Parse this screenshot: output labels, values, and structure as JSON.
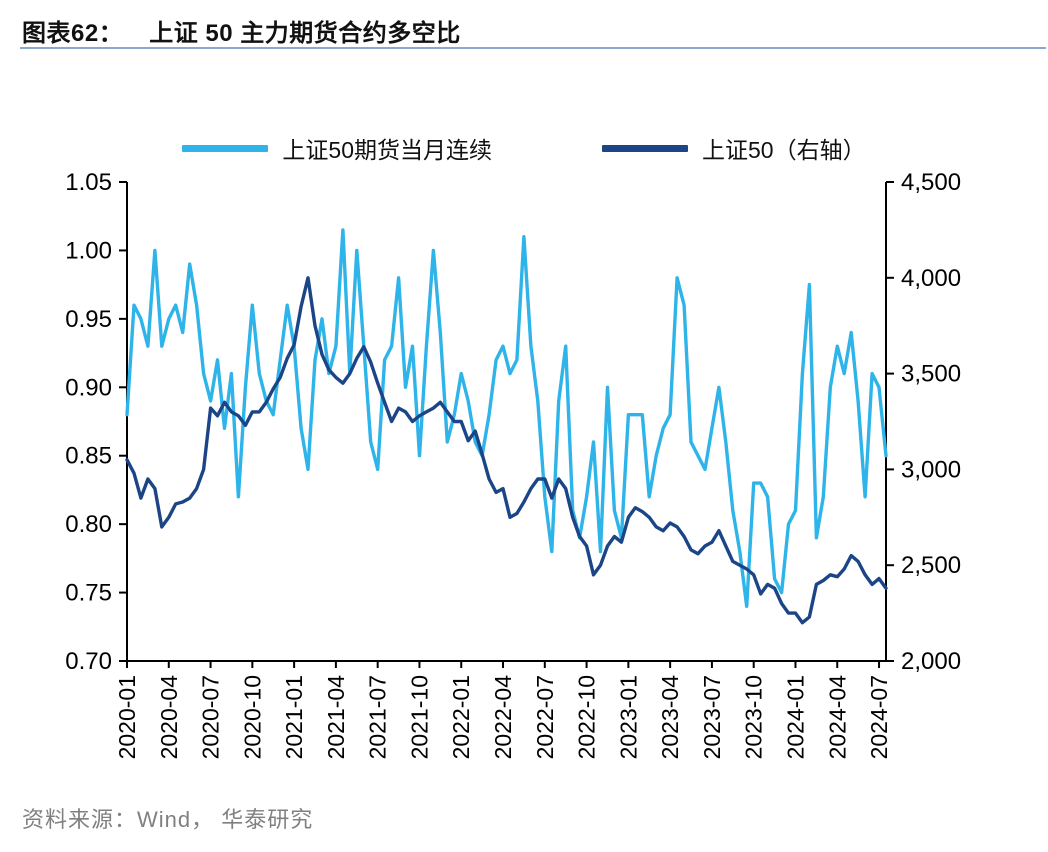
{
  "header": {
    "figure_label": "图表62：",
    "title": "上证 50 主力期货合约多空比"
  },
  "footer": {
    "source": "资料来源：Wind， 华泰研究"
  },
  "chart_data": {
    "type": "line",
    "title": "上证 50 主力期货合约多空比",
    "legend_position": "top",
    "grid": false,
    "x_tick_labels": [
      "2020-01",
      "2020-04",
      "2020-07",
      "2020-10",
      "2021-01",
      "2021-04",
      "2021-07",
      "2021-10",
      "2022-01",
      "2022-04",
      "2022-07",
      "2022-10",
      "2023-01",
      "2023-04",
      "2023-07",
      "2023-10",
      "2024-01",
      "2024-04",
      "2024-07"
    ],
    "x_tick_every_months": 3,
    "points_per_month": 2,
    "left_axis": {
      "min": 0.7,
      "max": 1.05,
      "ticks": [
        0.7,
        0.75,
        0.8,
        0.85,
        0.9,
        0.95,
        1.0,
        1.05
      ],
      "tick_labels": [
        "0.70",
        "0.75",
        "0.80",
        "0.85",
        "0.90",
        "0.95",
        "1.00",
        "1.05"
      ]
    },
    "right_axis": {
      "min": 2000,
      "max": 4500,
      "ticks": [
        2000,
        2500,
        3000,
        3500,
        4000,
        4500
      ],
      "tick_labels": [
        "2,000",
        "2,500",
        "3,000",
        "3,500",
        "4,000",
        "4,500"
      ]
    },
    "series": [
      {
        "name": "上证50期货当月连续",
        "axis": "left",
        "color": "#2FB4EA",
        "values": [
          0.88,
          0.96,
          0.95,
          0.93,
          1.0,
          0.93,
          0.95,
          0.96,
          0.94,
          0.99,
          0.96,
          0.91,
          0.89,
          0.92,
          0.87,
          0.91,
          0.82,
          0.9,
          0.96,
          0.91,
          0.89,
          0.88,
          0.92,
          0.96,
          0.93,
          0.87,
          0.84,
          0.92,
          0.95,
          0.91,
          0.93,
          1.015,
          0.91,
          1.0,
          0.93,
          0.86,
          0.84,
          0.92,
          0.93,
          0.98,
          0.9,
          0.93,
          0.85,
          0.93,
          1.0,
          0.94,
          0.86,
          0.88,
          0.91,
          0.89,
          0.86,
          0.85,
          0.88,
          0.92,
          0.93,
          0.91,
          0.92,
          1.01,
          0.93,
          0.89,
          0.82,
          0.78,
          0.89,
          0.93,
          0.81,
          0.79,
          0.82,
          0.86,
          0.78,
          0.9,
          0.81,
          0.79,
          0.88,
          0.88,
          0.88,
          0.82,
          0.85,
          0.87,
          0.88,
          0.98,
          0.96,
          0.86,
          0.85,
          0.84,
          0.87,
          0.9,
          0.86,
          0.81,
          0.78,
          0.74,
          0.83,
          0.83,
          0.82,
          0.76,
          0.75,
          0.8,
          0.81,
          0.91,
          0.975,
          0.79,
          0.82,
          0.9,
          0.93,
          0.91,
          0.94,
          0.89,
          0.82,
          0.91,
          0.9,
          0.85
        ]
      },
      {
        "name": "上证50（右轴）",
        "axis": "right",
        "color": "#1B4587",
        "values": [
          3050,
          2980,
          2850,
          2950,
          2900,
          2700,
          2750,
          2820,
          2830,
          2850,
          2900,
          3000,
          3320,
          3280,
          3350,
          3300,
          3280,
          3230,
          3300,
          3300,
          3350,
          3420,
          3480,
          3580,
          3650,
          3850,
          4000,
          3750,
          3600,
          3520,
          3480,
          3450,
          3500,
          3580,
          3640,
          3560,
          3450,
          3350,
          3250,
          3320,
          3300,
          3250,
          3280,
          3300,
          3320,
          3350,
          3300,
          3250,
          3250,
          3150,
          3200,
          3080,
          2950,
          2880,
          2900,
          2750,
          2770,
          2830,
          2900,
          2950,
          2950,
          2850,
          2950,
          2900,
          2750,
          2650,
          2600,
          2450,
          2500,
          2600,
          2650,
          2620,
          2750,
          2800,
          2780,
          2750,
          2700,
          2680,
          2720,
          2700,
          2650,
          2580,
          2560,
          2600,
          2620,
          2680,
          2600,
          2520,
          2500,
          2480,
          2450,
          2350,
          2400,
          2380,
          2300,
          2250,
          2250,
          2200,
          2230,
          2400,
          2420,
          2450,
          2440,
          2480,
          2550,
          2520,
          2450,
          2400,
          2430,
          2380
        ]
      }
    ]
  }
}
